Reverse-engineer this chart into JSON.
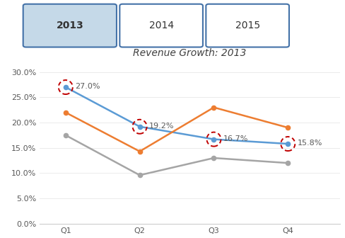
{
  "title": "Revenue Growth: 2013",
  "quarters": [
    "Q1",
    "Q2",
    "Q3",
    "Q4"
  ],
  "blue_line": [
    0.27,
    0.192,
    0.167,
    0.158
  ],
  "orange_line": [
    0.22,
    0.143,
    0.23,
    0.19
  ],
  "gray_line": [
    0.175,
    0.096,
    0.13,
    0.12
  ],
  "blue_color": "#5B9BD5",
  "orange_color": "#ED7D31",
  "gray_color": "#A5A5A5",
  "dashed_circle_color": "#C00000",
  "labels": [
    "27.0%",
    "19.2%",
    "16.7%",
    "15.8%"
  ],
  "yticks": [
    0.0,
    0.05,
    0.1,
    0.15,
    0.2,
    0.25,
    0.3
  ],
  "ytick_labels": [
    "0.0%",
    "5.0%",
    "10.0%",
    "15.0%",
    "20.0%",
    "25.0%",
    "30.0%"
  ],
  "button_labels": [
    "2013",
    "2014",
    "2015"
  ],
  "button_selected": 0,
  "button_selected_bg": "#C5D9E8",
  "button_unselected_bg": "#FFFFFF",
  "button_border_color": "#4472A8",
  "background_color": "#FFFFFF",
  "chart_bg": "#FFFFFF",
  "title_fontsize": 10,
  "label_fontsize": 8,
  "tick_fontsize": 8
}
